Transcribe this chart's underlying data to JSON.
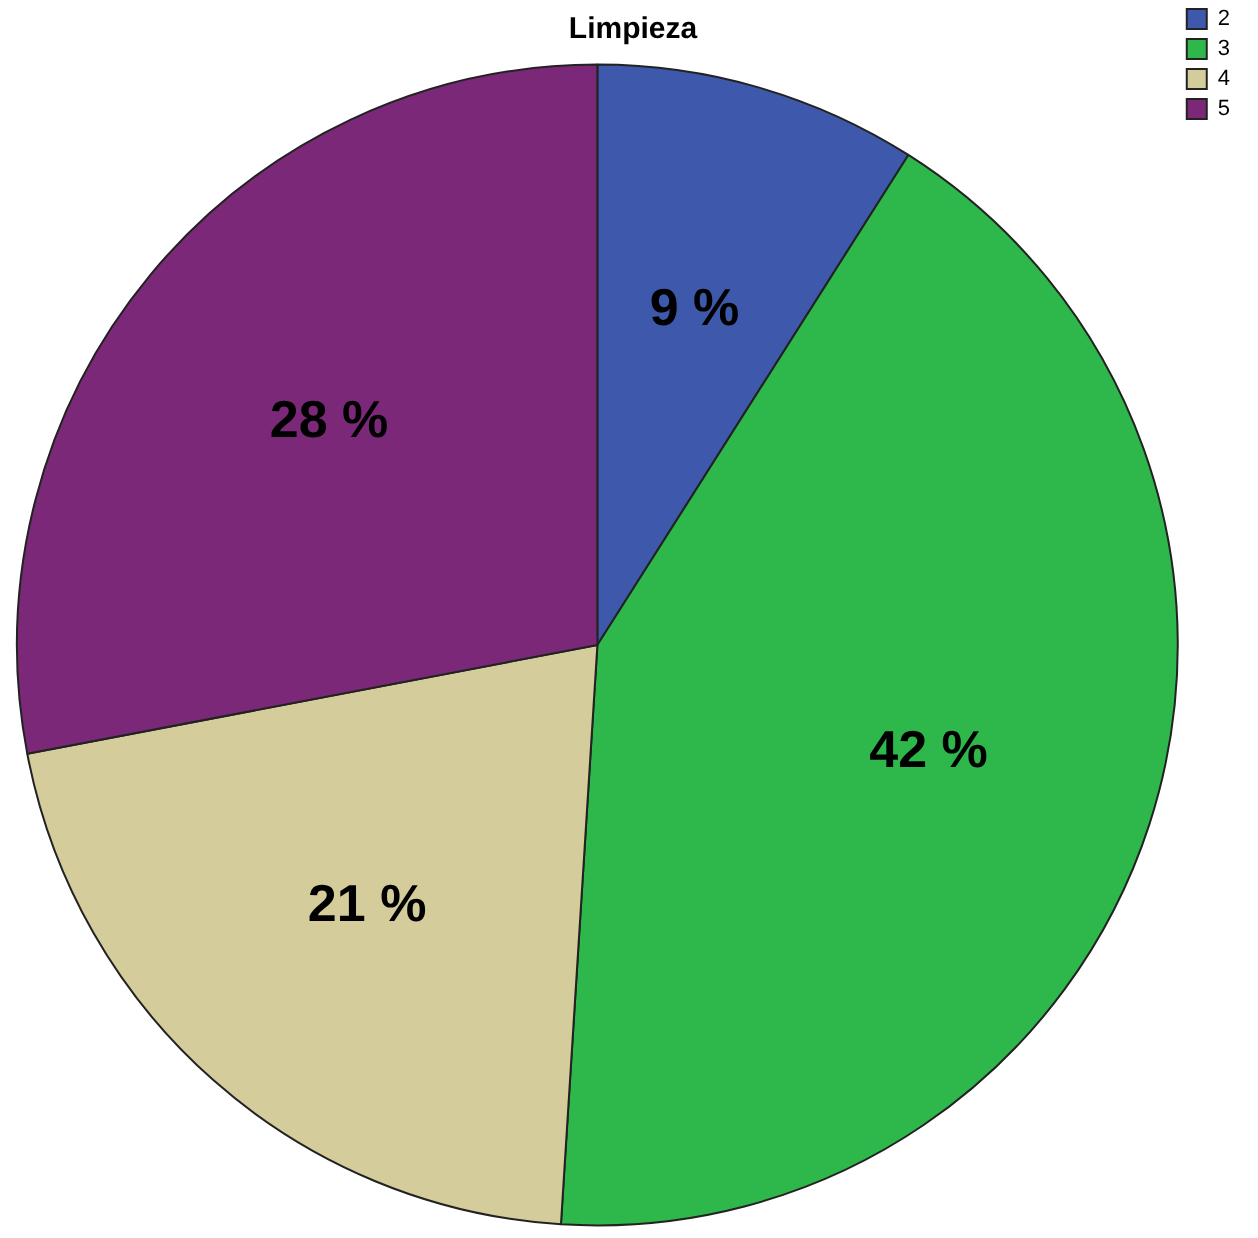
{
  "chart_data": {
    "type": "pie",
    "title": "Limpieza",
    "categories": [
      "2",
      "3",
      "4",
      "5"
    ],
    "values": [
      9,
      42,
      21,
      28
    ],
    "colors": [
      "#3e58ac",
      "#2eb84b",
      "#d4cc9a",
      "#7b2878"
    ],
    "value_labels": [
      "9 %",
      "42 %",
      "21 %",
      "28 %"
    ],
    "legend": "top right"
  }
}
